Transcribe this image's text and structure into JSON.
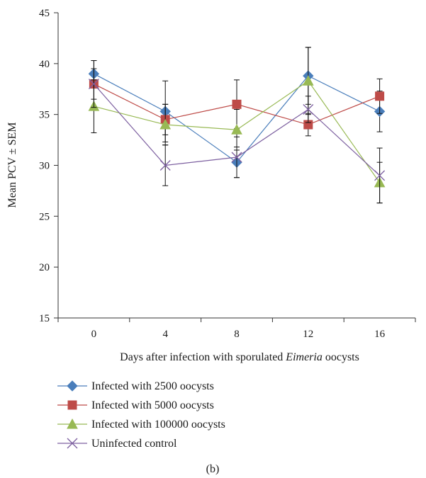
{
  "chart_data": {
    "type": "line",
    "panel_label": "(b)",
    "xlabel_parts": [
      "Days after infection with sporulated ",
      "Eimeria",
      " oocysts"
    ],
    "ylabel": "Mean PCV ± SEM",
    "x": [
      0,
      4,
      8,
      12,
      16
    ],
    "x_ticks": [
      "0",
      "4",
      "8",
      "12",
      "16"
    ],
    "ylim": [
      15,
      45
    ],
    "y_ticks": [
      "15",
      "20",
      "25",
      "30",
      "35",
      "40",
      "45"
    ],
    "grid": false,
    "legend_position": "bottom-left",
    "series": [
      {
        "name": "Infected with 2500 oocysts",
        "color": "#4a7ebb",
        "marker": "diamond",
        "values": [
          39.0,
          35.3,
          30.3,
          38.8,
          35.3
        ],
        "sem": [
          1.3,
          3.0,
          1.5,
          2.8,
          2.0
        ]
      },
      {
        "name": "Infected with 5000 oocysts",
        "color": "#be4b48",
        "marker": "square",
        "values": [
          38.0,
          34.5,
          36.0,
          34.0,
          36.8
        ],
        "sem": [
          1.5,
          1.5,
          2.4,
          1.1,
          1.7
        ]
      },
      {
        "name": "Infected with 100000 oocysts",
        "color": "#98b954",
        "marker": "triangle",
        "values": [
          35.8,
          34.0,
          33.5,
          38.3,
          28.3
        ],
        "sem": [
          2.6,
          2.0,
          2.0,
          3.3,
          2.0
        ]
      },
      {
        "name": "Uninfected control",
        "color": "#7d60a0",
        "marker": "x",
        "values": [
          38.0,
          30.0,
          30.8,
          35.5,
          29.0
        ],
        "sem": [
          2.3,
          2.0,
          2.0,
          1.3,
          2.7
        ]
      }
    ]
  }
}
